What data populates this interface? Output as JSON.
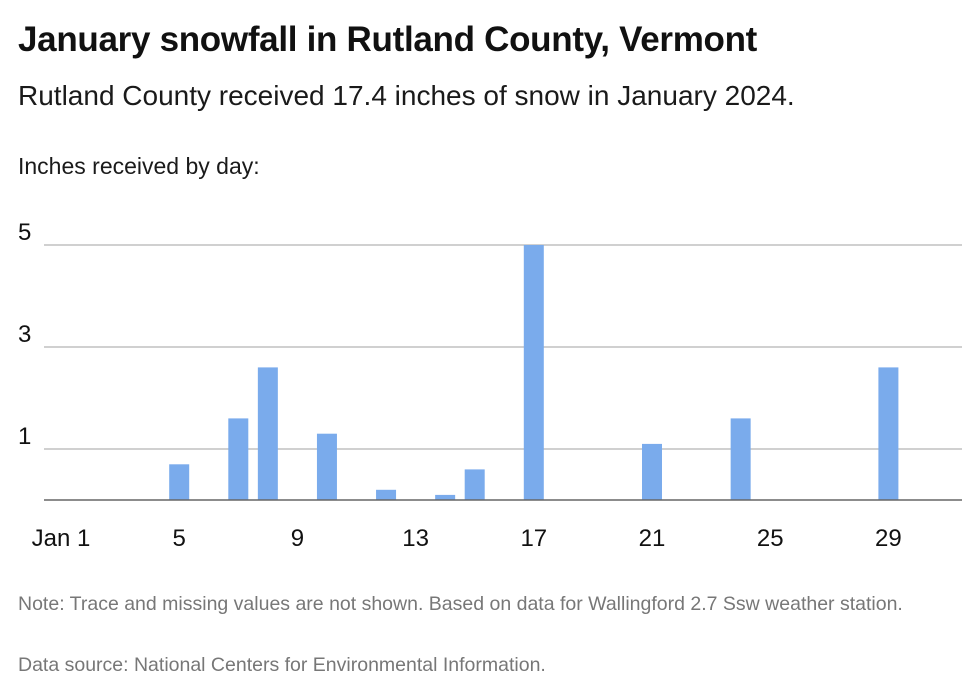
{
  "title": "January snowfall in Rutland County, Vermont",
  "subtitle": "Rutland County received 17.4 inches of snow in January 2024.",
  "note": "Note: Trace and missing values are not shown. Based on data for Wallingford 2.7 Ssw weather station.",
  "source": "Data source: National Centers for Environmental Information.",
  "chart_data": {
    "type": "bar",
    "title": "January snowfall in Rutland County, Vermont",
    "ylabel": "Inches received by day:",
    "xlabel": "",
    "bar_color": "#7aabec",
    "grid": true,
    "ylim": [
      0,
      5
    ],
    "y_ticks": [
      1,
      3,
      5
    ],
    "x_tick_days": [
      1,
      5,
      9,
      13,
      17,
      21,
      25,
      29
    ],
    "x_tick_labels": [
      "Jan 1",
      "5",
      "9",
      "13",
      "17",
      "21",
      "25",
      "29"
    ],
    "x": [
      5,
      7,
      8,
      10,
      12,
      14,
      15,
      17,
      21,
      24,
      29
    ],
    "values": [
      0.7,
      1.6,
      2.6,
      1.3,
      0.2,
      0.1,
      0.6,
      5.0,
      1.1,
      1.6,
      2.6
    ]
  }
}
